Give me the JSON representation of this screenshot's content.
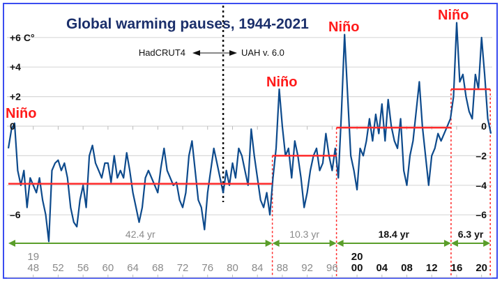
{
  "chart_data": {
    "type": "line",
    "title": "Global warming pauses, 1944-2021",
    "x_start": 1944.0,
    "x_step": 0.5,
    "xlim": [
      1944,
      2021.8
    ],
    "ylim": [
      -7.8,
      7.2
    ],
    "grid": true,
    "y_ticks_left": [
      "+6 C°",
      "+4",
      "+2",
      "0",
      "–6"
    ],
    "y_ticks_left_values": [
      6,
      4,
      2,
      0,
      -6
    ],
    "y_ticks_right": [
      "0",
      "–2",
      "–4",
      "–6"
    ],
    "y_ticks_right_values": [
      0,
      -2,
      -4,
      -6
    ],
    "x_tick_years": [
      1948,
      1952,
      1956,
      1960,
      1964,
      1968,
      1972,
      1976,
      1980,
      1984,
      1988,
      1992,
      1996,
      2000,
      2004,
      2008,
      2012,
      2016,
      2020
    ],
    "x_tick_labels": [
      "48",
      "52",
      "56",
      "60",
      "64",
      "68",
      "72",
      "76",
      "80",
      "84",
      "88",
      "92",
      "96",
      "00",
      "04",
      "08",
      "12",
      "16",
      "20"
    ],
    "century_labels": [
      {
        "text": "19",
        "year": 1948
      },
      {
        "text": "20",
        "year": 2000
      }
    ],
    "series_color": "#0d4a8c",
    "values": [
      -1.5,
      -0.2,
      0.2,
      -3,
      -4,
      -3,
      -5.5,
      -3.5,
      -4,
      -4.5,
      -3.5,
      -5,
      -6,
      -7.8,
      -3,
      -2.5,
      -2.3,
      -3,
      -2.5,
      -3.5,
      -5.5,
      -6.5,
      -6.8,
      -5,
      -4,
      -5.5,
      -2,
      -1.3,
      -2.5,
      -3,
      -3.5,
      -2.5,
      -2.5,
      -3.8,
      -2,
      -3.5,
      -3,
      -3.5,
      -1.8,
      -3,
      -4.5,
      -5.5,
      -6.5,
      -5.5,
      -3.5,
      -3,
      -3.5,
      -4,
      -4.5,
      -2.8,
      -1.5,
      -3,
      -3.5,
      -4,
      -3.8,
      -5,
      -5.5,
      -4.5,
      -2,
      -1,
      -3,
      -5,
      -5.5,
      -7,
      -4.5,
      -3,
      -1.5,
      -2.5,
      -3.5,
      -4.5,
      -3,
      -4,
      -2.5,
      -3.5,
      -1.5,
      -2,
      -3,
      -4,
      -0.2,
      -2,
      -3.5,
      -5,
      -5.5,
      -4.5,
      -6,
      -3.5,
      -1.5,
      2.5,
      0,
      -2,
      -1.5,
      -3.5,
      -1,
      -2,
      -3.5,
      -5.5,
      -4.5,
      -3,
      -2,
      -1.5,
      -3,
      -2.5,
      -0.5,
      -2,
      -3,
      -1.5,
      -3.5,
      1,
      6.2,
      2,
      -2,
      -3,
      -4.3,
      -1.5,
      -2,
      -1,
      0.5,
      -1,
      0.8,
      -0.5,
      1.5,
      -1,
      1.8,
      0,
      -1,
      -1.5,
      0.5,
      -3,
      -4,
      -2,
      -1,
      1,
      3,
      0,
      -2,
      -4,
      -2,
      -1.5,
      -0.5,
      -1,
      -0.5,
      0,
      0.5,
      2,
      7,
      3,
      3.5,
      2,
      1,
      0.5,
      3.5,
      2.5,
      6,
      3.5,
      0.5,
      -0.5
    ],
    "pause_levels": [
      {
        "start": 1944.0,
        "end": 1986.4,
        "level": -3.9,
        "duration": "42.4 yr"
      },
      {
        "start": 1986.4,
        "end": 1996.7,
        "level": -2.0,
        "duration": "10.3 yr"
      },
      {
        "start": 1996.7,
        "end": 2015.1,
        "level": -0.1,
        "duration": "18.4 yr"
      },
      {
        "start": 2015.1,
        "end": 2021.4,
        "level": 2.5,
        "duration": "6.3 yr"
      }
    ],
    "pause_color": "#ff2a2a",
    "arrow_color": "#5a9e2a",
    "source_split_year": 1978.5,
    "annotations": {
      "left_source": "HadCRUT4",
      "right_source": "UAH v. 6.0",
      "nino": [
        "Niño",
        "Niño",
        "Niño",
        "Niño"
      ]
    }
  }
}
